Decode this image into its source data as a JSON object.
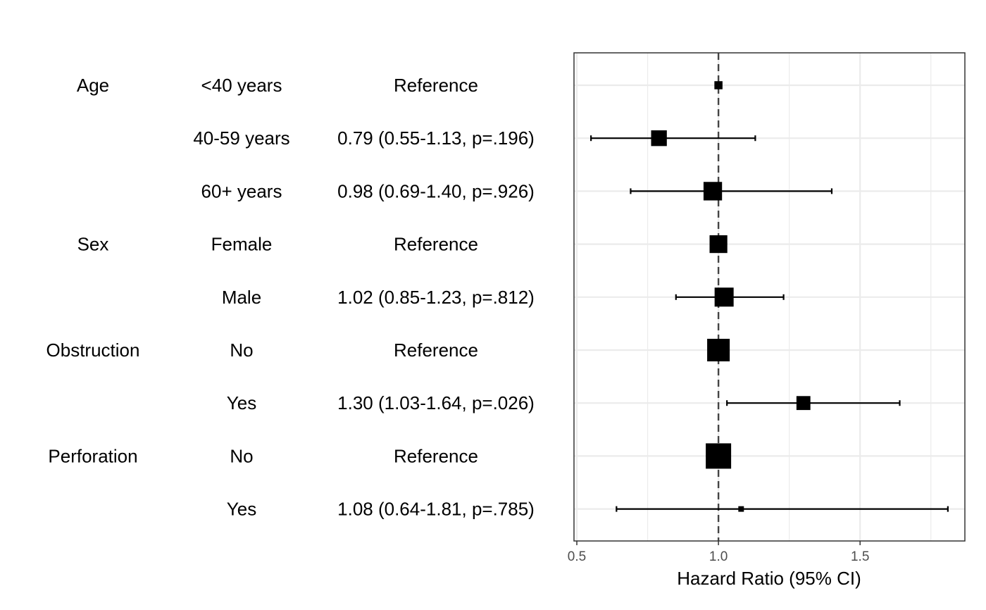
{
  "chart_data": {
    "type": "forest",
    "xlabel": "Hazard Ratio (95% CI)",
    "xlim": [
      0.49,
      1.87
    ],
    "xticks": [
      0.5,
      1.0,
      1.5
    ],
    "x_tick_labels": [
      "0.5",
      "1.0",
      "1.5"
    ],
    "reference_line": 1.0,
    "grid": true,
    "rows": [
      {
        "variable": "Age",
        "level": "<40 years",
        "label": "Reference",
        "hr": 1.0,
        "lower": null,
        "upper": null,
        "marker_rel": 0.32
      },
      {
        "variable": "",
        "level": "40-59 years",
        "label": "0.79 (0.55-1.13, p=.196)",
        "hr": 0.79,
        "lower": 0.55,
        "upper": 1.13,
        "marker_rel": 0.62
      },
      {
        "variable": "",
        "level": "60+ years",
        "label": "0.98 (0.69-1.40, p=.926)",
        "hr": 0.98,
        "lower": 0.69,
        "upper": 1.4,
        "marker_rel": 0.73
      },
      {
        "variable": "Sex",
        "level": "Female",
        "label": "Reference",
        "hr": 1.0,
        "lower": null,
        "upper": null,
        "marker_rel": 0.7
      },
      {
        "variable": "",
        "level": "Male",
        "label": "1.02 (0.85-1.23, p=.812)",
        "hr": 1.02,
        "lower": 0.85,
        "upper": 1.23,
        "marker_rel": 0.75
      },
      {
        "variable": "Obstruction",
        "level": "No",
        "label": "Reference",
        "hr": 1.0,
        "lower": null,
        "upper": null,
        "marker_rel": 0.89
      },
      {
        "variable": "",
        "level": "Yes",
        "label": "1.30 (1.03-1.64, p=.026)",
        "hr": 1.3,
        "lower": 1.03,
        "upper": 1.64,
        "marker_rel": 0.55
      },
      {
        "variable": "Perforation",
        "level": "No",
        "label": "Reference",
        "hr": 1.0,
        "lower": null,
        "upper": null,
        "marker_rel": 1.0
      },
      {
        "variable": "",
        "level": "Yes",
        "label": "1.08 (0.64-1.81, p=.785)",
        "hr": 1.08,
        "lower": 0.64,
        "upper": 1.81,
        "marker_rel": 0.22
      }
    ]
  },
  "colors": {
    "ink": "#000000",
    "grid": "#ebebeb",
    "panel_border": "#333333",
    "reference_line": "#444444",
    "tick_text": "#4d4d4d"
  }
}
